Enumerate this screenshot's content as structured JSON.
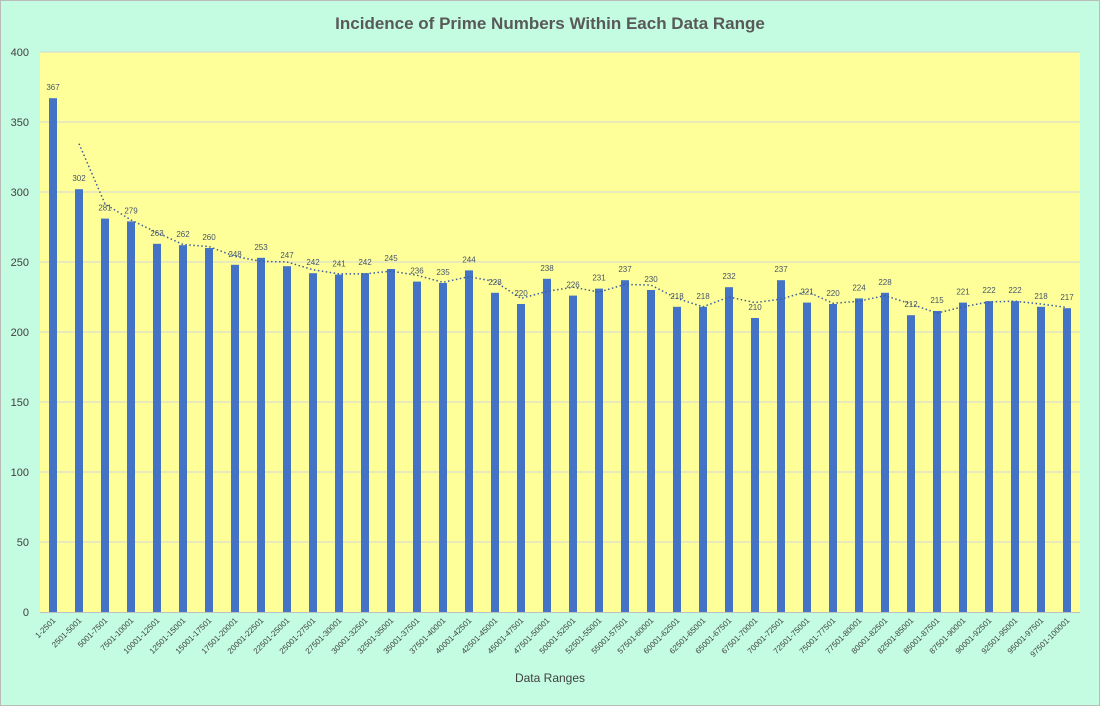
{
  "chart_data": {
    "type": "bar",
    "title": "Incidence of Prime Numbers Within Each Data Range",
    "xlabel": "Data Ranges",
    "ylabel": "",
    "ylim": [
      0,
      400
    ],
    "yticks": [
      0,
      50,
      100,
      150,
      200,
      250,
      300,
      350,
      400
    ],
    "grid": true,
    "legend": "none",
    "trendline": "2-period moving average (dotted)",
    "colors": {
      "bar": "#4472c4",
      "plot_background": "#ffff99",
      "chart_background": "#c3fce0",
      "gridline": "#d0d4dc",
      "label": "#44546a",
      "trend": "#3d5da0"
    },
    "categories": [
      "1-2501",
      "2501-5001",
      "5001-7501",
      "7501-10001",
      "10001-12501",
      "12501-15001",
      "15001-17501",
      "17501-20001",
      "20001-22501",
      "22501-25001",
      "25001-27501",
      "27501-30001",
      "30001-32501",
      "32501-35001",
      "35001-37501",
      "37501-40001",
      "40001-42501",
      "42501-45001",
      "45001-47501",
      "47501-50001",
      "50001-52501",
      "52501-55001",
      "55001-57501",
      "57501-60001",
      "60001-62501",
      "62501-65001",
      "65001-67501",
      "67501-70001",
      "70001-72501",
      "72501-75001",
      "75001-77501",
      "77501-80001",
      "80001-82501",
      "82501-85001",
      "85001-87501",
      "87501-90001",
      "90001-92501",
      "92501-95001",
      "95001-97501",
      "97501-100001"
    ],
    "values": [
      367,
      302,
      281,
      279,
      263,
      262,
      260,
      248,
      253,
      247,
      242,
      241,
      242,
      245,
      236,
      235,
      244,
      228,
      220,
      238,
      226,
      231,
      237,
      230,
      218,
      218,
      232,
      210,
      237,
      221,
      220,
      224,
      228,
      212,
      215,
      221,
      222,
      222,
      218,
      217
    ]
  }
}
